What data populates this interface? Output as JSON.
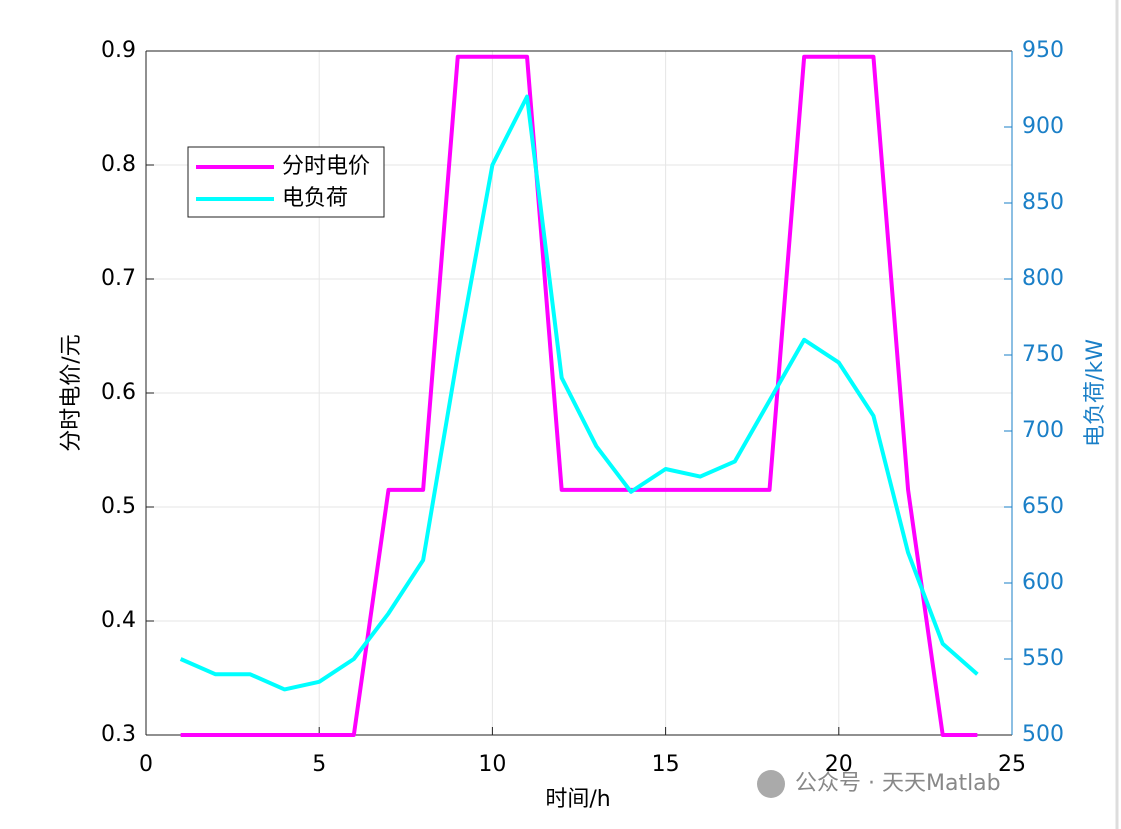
{
  "chart_data": {
    "type": "line",
    "xlabel": "时间/h",
    "ylabel": "分时电价/元",
    "y2label": "电负荷/kW",
    "x": [
      1,
      2,
      3,
      4,
      5,
      6,
      7,
      8,
      9,
      10,
      11,
      12,
      13,
      14,
      15,
      16,
      17,
      18,
      19,
      20,
      21,
      22,
      23,
      24
    ],
    "series": [
      {
        "name": "分时电价",
        "color": "#ff00ff",
        "axis": "y",
        "values": [
          0.3,
          0.3,
          0.3,
          0.3,
          0.3,
          0.3,
          0.515,
          0.515,
          0.895,
          0.895,
          0.895,
          0.515,
          0.515,
          0.515,
          0.515,
          0.515,
          0.515,
          0.515,
          0.895,
          0.895,
          0.895,
          0.515,
          0.3,
          0.3
        ]
      },
      {
        "name": "电负荷",
        "color": "#00ffff",
        "axis": "y2",
        "values": [
          550,
          540,
          540,
          530,
          535,
          550,
          580,
          615,
          750,
          875,
          920,
          735,
          690,
          660,
          675,
          670,
          680,
          720,
          760,
          745,
          710,
          620,
          560,
          540
        ]
      }
    ],
    "xlim": [
      0,
      25
    ],
    "xticks": [
      0,
      5,
      10,
      15,
      20,
      25
    ],
    "ylim": [
      0.3,
      0.9
    ],
    "yticks": [
      0.3,
      0.4,
      0.5,
      0.6,
      0.7,
      0.8,
      0.9
    ],
    "y2lim": [
      500,
      950
    ],
    "y2ticks": [
      500,
      550,
      600,
      650,
      700,
      750,
      800,
      850,
      900,
      950
    ],
    "y2color": "#1a7fc7",
    "grid": true,
    "legend": "upper left"
  },
  "watermark": "公众号 · 天天Matlab"
}
